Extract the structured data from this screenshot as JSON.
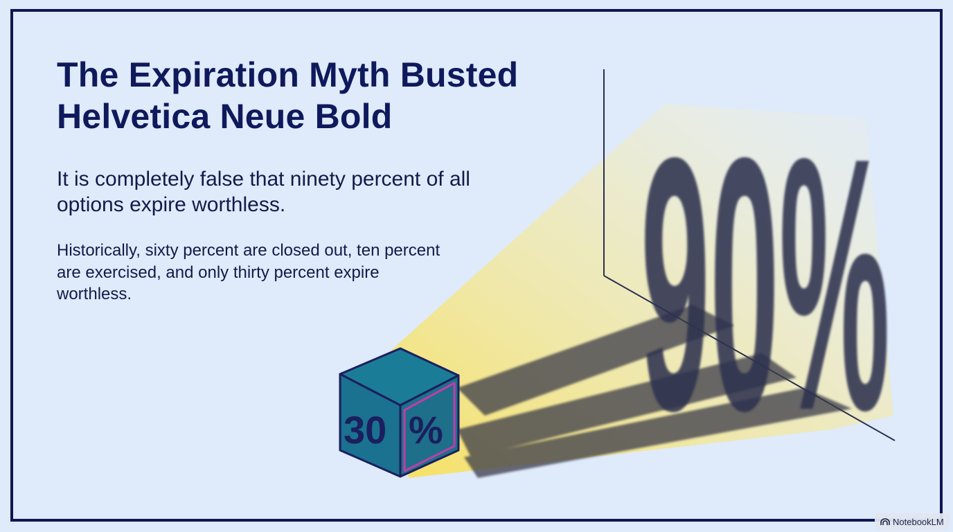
{
  "slide": {
    "title_line1": "The Expiration Myth Busted",
    "title_line2": "Helvetica Neue Bold",
    "lead": "It is completely false that ninety percent of all options expire worthless.",
    "detail": "Historically, sixty percent are closed out, ten percent are exercised, and only thirty percent expire worthless."
  },
  "illustration": {
    "cube_label_left": "30",
    "cube_label_right": "%",
    "shadow_label": "90%",
    "colors": {
      "cube_face": "#1e7f9b",
      "cube_edge": "#1b1f5e",
      "cube_accent": "#c33ca8",
      "light": "#f7e36a",
      "shadow": "#2a2d4a"
    }
  },
  "watermark": {
    "icon": "notebooklm-icon",
    "label": "NotebookLM"
  }
}
